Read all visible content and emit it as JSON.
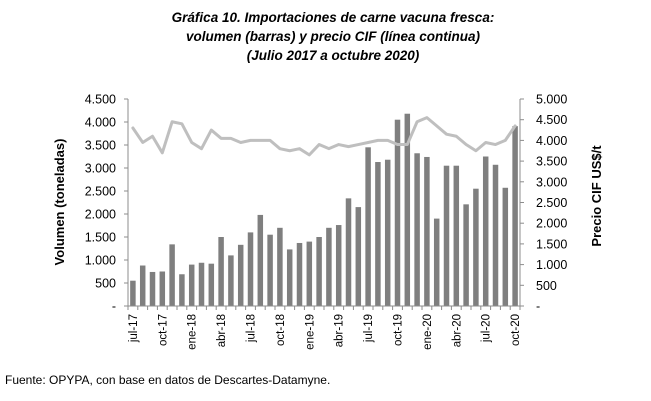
{
  "source": "Fuente: OPYPA, con base en datos de Descartes-Datamyne.",
  "chart_data": {
    "type": "bar",
    "title": [
      "Gráfica 10. Importaciones de carne vacuna fresca:",
      "volumen (barras) y precio CIF (línea continua)",
      "(Julio 2017 a octubre 2020)"
    ],
    "ylabel": "Volumen (toneladas)",
    "y2label": "Precio CIF US$/t",
    "ylim": [
      0,
      4500
    ],
    "y2lim": [
      0,
      5000
    ],
    "y_ticks": [
      "-",
      "500",
      "1.000",
      "1.500",
      "2.000",
      "2.500",
      "3.000",
      "3.500",
      "4.000",
      "4.500"
    ],
    "y2_ticks": [
      "-",
      "500",
      "1.000",
      "1.500",
      "2.000",
      "2.500",
      "3.000",
      "3.500",
      "4.000",
      "4.500",
      "5.000"
    ],
    "x_tick_labels": [
      "jul-17",
      "oct-17",
      "ene-18",
      "abr-18",
      "jul-18",
      "oct-18",
      "ene-19",
      "abr-19",
      "jul-19",
      "oct-19",
      "ene-20",
      "abr-20",
      "jul-20",
      "oct-20"
    ],
    "x_tick_every": 3,
    "bar_color": "#7f7f7f",
    "line_color": "#bfbfbf",
    "grid": false,
    "series": [
      {
        "type": "bar",
        "axis": "left",
        "values": [
          550,
          880,
          740,
          750,
          1340,
          690,
          900,
          940,
          920,
          1500,
          1100,
          1330,
          1600,
          1980,
          1550,
          1700,
          1230,
          1370,
          1400,
          1500,
          1700,
          1760,
          2340,
          2150,
          3450,
          3130,
          3180,
          4050,
          4180,
          3320,
          3240,
          1900,
          3050,
          3050,
          2210,
          2550,
          3250,
          3070,
          2570,
          3910
        ]
      },
      {
        "type": "line",
        "axis": "right",
        "values": [
          4300,
          3950,
          4100,
          3700,
          4450,
          4400,
          3950,
          3800,
          4250,
          4050,
          4050,
          3950,
          4000,
          4000,
          4000,
          3800,
          3750,
          3800,
          3650,
          3900,
          3800,
          3900,
          3850,
          3900,
          3950,
          4000,
          4000,
          3900,
          3900,
          4450,
          4550,
          4350,
          4150,
          4100,
          3900,
          3750,
          3950,
          3900,
          4000,
          4350
        ]
      }
    ]
  }
}
